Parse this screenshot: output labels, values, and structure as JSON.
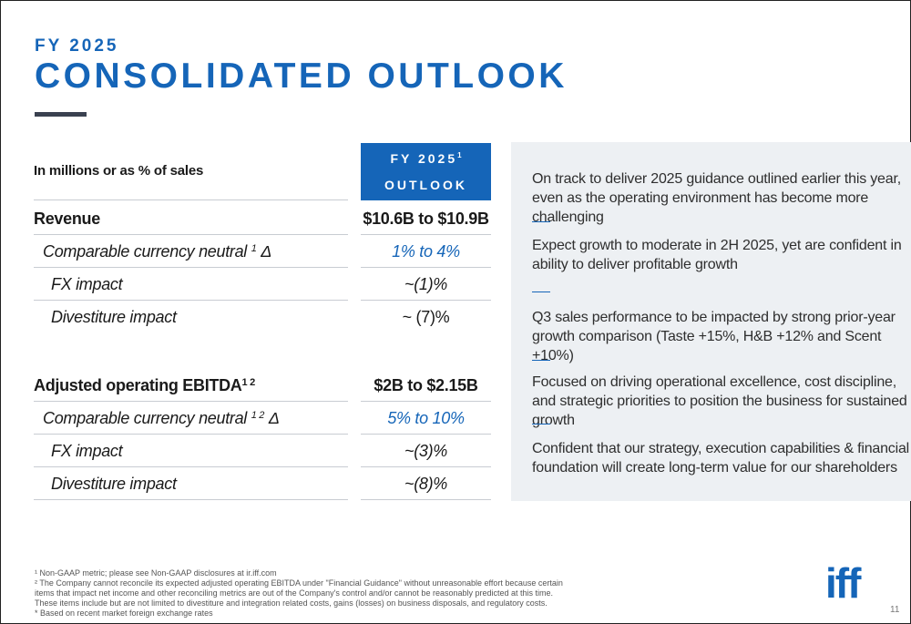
{
  "header": {
    "kicker": "FY 2025",
    "title": "CONSOLIDATED OUTLOOK"
  },
  "table": {
    "units_label": "In millions or as % of sales",
    "column_header_line1": "FY 2025",
    "column_header_sup": "1",
    "column_header_line2": "OUTLOOK",
    "rows": [
      {
        "label": "Revenue",
        "sup": "",
        "value": "$10.6B to $10.9B"
      },
      {
        "label": "Comparable currency neutral ",
        "sup": "1",
        "suffix": " Δ",
        "value": "1% to 4%"
      },
      {
        "label": "FX impact",
        "sup": "",
        "value": "~(1)%"
      },
      {
        "label": "Divestiture impact",
        "sup": "",
        "value": "~ (7)%"
      },
      {
        "label": "Adjusted operating EBITDA",
        "sup": "1 2",
        "value": "$2B to $2.15B"
      },
      {
        "label": "Comparable currency neutral ",
        "sup": "1 2",
        "suffix": " Δ",
        "value": "5% to 10%"
      },
      {
        "label": "FX impact",
        "sup": "",
        "value": "~(3)%"
      },
      {
        "label": "Divestiture impact",
        "sup": "",
        "value": "~(8)%"
      }
    ]
  },
  "highlights": [
    "On track to deliver 2025 guidance outlined earlier this year, even as the operating environment has become more challenging",
    "Expect growth to moderate in 2H 2025, yet are confident in ability to deliver profitable growth",
    "Q3 sales performance to be impacted by strong prior-year growth comparison (Taste +15%, H&B +12% and Scent +10%)",
    "Focused on driving operational excellence, cost discipline, and strategic priorities to position the business for sustained growth",
    "Confident that our strategy, execution capabilities & financial foundation will create long-term value for our shareholders"
  ],
  "footnotes": [
    "¹ Non-GAAP metric; please see Non-GAAP disclosures at ir.iff.com",
    "² The Company cannot reconcile its expected adjusted operating EBITDA under \"Financial Guidance\" without unreasonable effort because certain items that impact net income and other reconciling metrics are out of the Company's control and/or cannot be reasonably predicted at this time. These items include but are not limited to divestiture and integration related costs, gains (losses) on business disposals, and regulatory costs.",
    "* Based on recent market foreign exchange rates"
  ],
  "logo_text": "iff",
  "page_number": "11",
  "colors": {
    "accent": "#1565b8",
    "panel": "#edf0f3",
    "rule": "#3a4150"
  }
}
